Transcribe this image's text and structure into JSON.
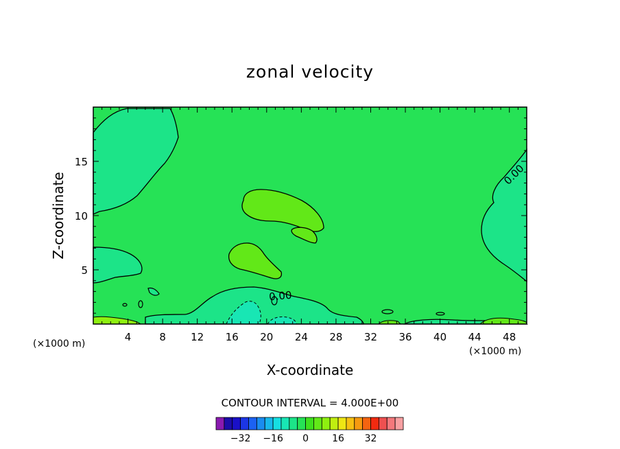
{
  "chart_data": {
    "type": "heatmap",
    "title": "zonal velocity",
    "xlabel": "X-coordinate",
    "ylabel": "Z-coordinate",
    "x_unit_left": "(×1000 m)",
    "x_unit_right": "(×1000 m)",
    "xlim": [
      0,
      50
    ],
    "ylim": [
      0,
      20
    ],
    "x_ticks": [
      4,
      8,
      12,
      16,
      20,
      24,
      28,
      32,
      36,
      40,
      44,
      48
    ],
    "y_ticks": [
      5,
      10,
      15
    ],
    "contour_interval_text": "CONTOUR INTERVAL = 4.000E+00",
    "contour_labels": [
      "0.00",
      "0.00"
    ],
    "colorbar": {
      "ticks": [
        -32,
        -16,
        0,
        16,
        32
      ],
      "tick_labels": [
        "−32",
        "−16",
        "0",
        "16",
        "32"
      ],
      "colors": [
        "#8a1ab0",
        "#1c0ca8",
        "#1a10c8",
        "#1c36e6",
        "#1c62f2",
        "#1a8cf0",
        "#18b8ec",
        "#16dfe2",
        "#18e6b4",
        "#1ce488",
        "#26e256",
        "#3ee01e",
        "#62e818",
        "#8ef010",
        "#c0ee10",
        "#eee614",
        "#f6c012",
        "#f69a10",
        "#f46410",
        "#f22a10",
        "#ee5050",
        "#f4787c",
        "#f8a0a2"
      ]
    },
    "colors": {
      "background_field": "#26e256",
      "weak_negative": "#1ce488",
      "weak_positive": "#62e818",
      "moderate_positive": "#8ef010"
    }
  }
}
